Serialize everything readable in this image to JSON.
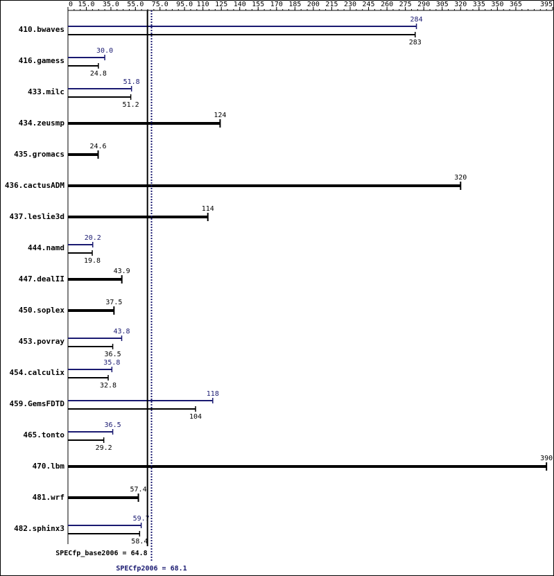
{
  "chart_data": {
    "type": "paired-bar",
    "categories": [
      "410.bwaves",
      "416.gamess",
      "433.milc",
      "434.zeusmp",
      "435.gromacs",
      "436.cactusADM",
      "437.leslie3d",
      "444.namd",
      "447.dealII",
      "450.soplex",
      "453.povray",
      "454.calculix",
      "459.GemsFDTD",
      "465.tonto",
      "470.lbm",
      "481.wrf",
      "482.sphinx3"
    ],
    "series": [
      {
        "color": "#191970",
        "values": [
          284,
          30.0,
          51.8,
          null,
          null,
          null,
          null,
          20.2,
          null,
          null,
          43.8,
          35.8,
          118,
          36.5,
          null,
          null,
          59.7
        ],
        "value_labels": [
          "284",
          "30.0",
          "51.8",
          null,
          null,
          null,
          null,
          "20.2",
          null,
          null,
          "43.8",
          "35.8",
          "118",
          "36.5",
          null,
          null,
          "59.7"
        ]
      },
      {
        "color": "#000000",
        "values": [
          283,
          24.8,
          51.2,
          124,
          24.6,
          320,
          114,
          19.8,
          43.9,
          37.5,
          36.5,
          32.8,
          104,
          29.2,
          390,
          57.4,
          58.4
        ],
        "value_labels": [
          "283",
          "24.8",
          "51.2",
          "124",
          "24.6",
          "320",
          "114",
          "19.8",
          "43.9",
          "37.5",
          "36.5",
          "32.8",
          "104",
          "29.2",
          "390",
          "57.4",
          "58.4"
        ]
      }
    ],
    "xlim": [
      0,
      395
    ],
    "xticks": [
      0,
      {
        "value": 15,
        "label": "15.0"
      },
      {
        "value": 35,
        "label": "35.0"
      },
      {
        "value": 55,
        "label": "55.0"
      },
      {
        "value": 75,
        "label": "75.0"
      },
      {
        "value": 95,
        "label": "95.0"
      },
      110,
      125,
      140,
      155,
      170,
      185,
      200,
      215,
      230,
      245,
      260,
      275,
      290,
      305,
      320,
      335,
      350,
      365,
      395
    ],
    "reference_lines": [
      {
        "label": "SPECfp_base2006 = 64.8",
        "value": 64.8,
        "color": "#000000",
        "style": "solid"
      },
      {
        "label": "SPECfp2006 = 68.1",
        "value": 68.1,
        "color": "#191970",
        "style": "dotted"
      }
    ]
  }
}
